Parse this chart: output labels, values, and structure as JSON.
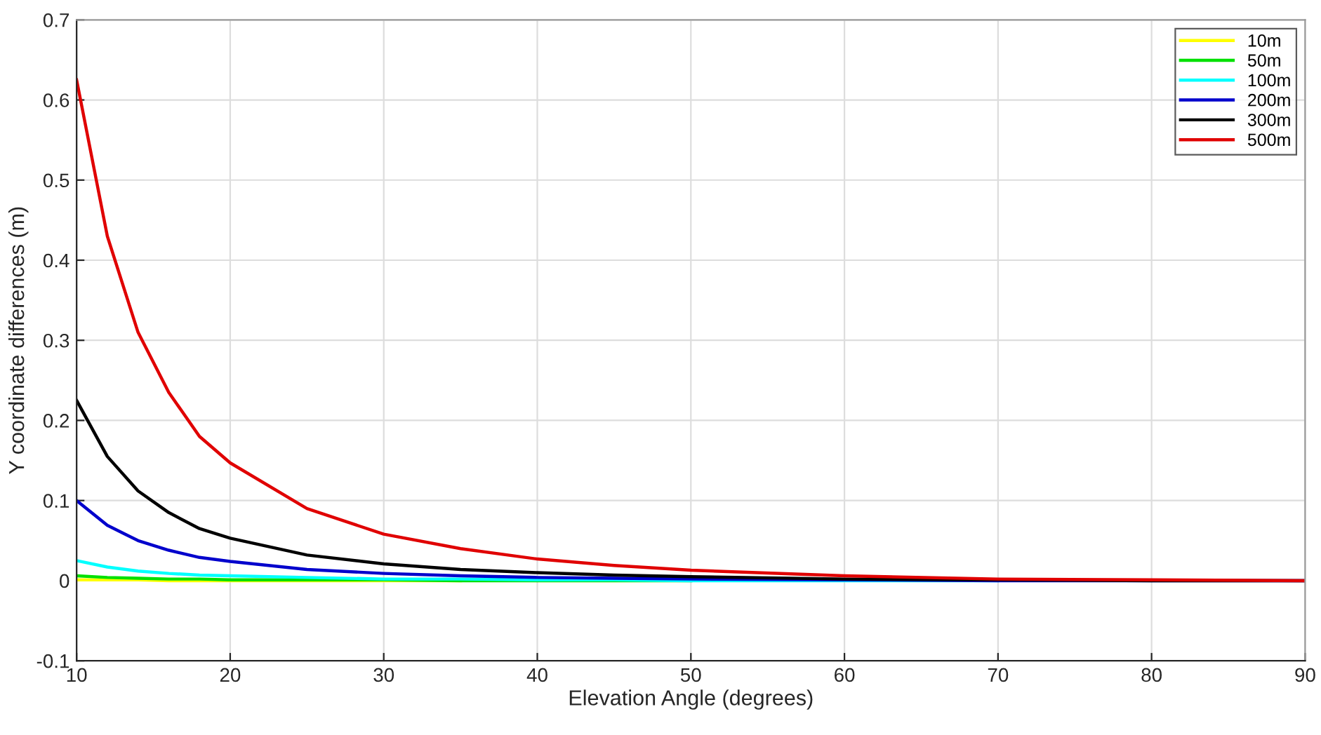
{
  "chart_data": {
    "type": "line",
    "xlabel": "Elevation Angle (degrees)",
    "ylabel": "Y coordinate differences (m)",
    "x": [
      10,
      12,
      14,
      16,
      18,
      20,
      25,
      30,
      35,
      40,
      45,
      50,
      60,
      70,
      80,
      90
    ],
    "series": [
      {
        "name": "10m",
        "color": "#ffff00",
        "values": [
          0.001,
          0.001,
          0.001,
          0,
          0,
          0,
          0,
          0,
          0,
          null,
          null,
          null,
          null,
          null,
          null,
          null
        ]
      },
      {
        "name": "50m",
        "color": "#00e000",
        "values": [
          0.006,
          0.004,
          0.003,
          0.002,
          0.002,
          0.001,
          0.001,
          0.001,
          0,
          0,
          0,
          0,
          null,
          null,
          null,
          null
        ]
      },
      {
        "name": "100m",
        "color": "#00ffff",
        "values": [
          0.025,
          0.017,
          0.012,
          0.009,
          0.007,
          0.006,
          0.004,
          0.002,
          0.002,
          0.001,
          0.001,
          0,
          0,
          0,
          null,
          null
        ]
      },
      {
        "name": "200m",
        "color": "#0000cc",
        "values": [
          0.1,
          0.069,
          0.05,
          0.038,
          0.029,
          0.024,
          0.014,
          0.009,
          0.006,
          0.004,
          0.003,
          0.002,
          0.001,
          0,
          0,
          0
        ]
      },
      {
        "name": "300m",
        "color": "#000000",
        "values": [
          0.225,
          0.155,
          0.112,
          0.085,
          0.065,
          0.053,
          0.032,
          0.021,
          0.014,
          0.01,
          0.007,
          0.005,
          0.002,
          0.001,
          0,
          0
        ]
      },
      {
        "name": "500m",
        "color": "#e00000",
        "values": [
          0.625,
          0.43,
          0.31,
          0.235,
          0.18,
          0.147,
          0.09,
          0.058,
          0.04,
          0.027,
          0.019,
          0.013,
          0.006,
          0.002,
          0.001,
          0
        ]
      }
    ],
    "xlim": [
      10,
      90
    ],
    "xticks": [
      10,
      20,
      30,
      40,
      50,
      60,
      70,
      80,
      90
    ],
    "ylim": [
      -0.1,
      0.7
    ],
    "yticks": [
      -0.1,
      0,
      0.1,
      0.2,
      0.3,
      0.4,
      0.5,
      0.6,
      0.7
    ],
    "grid": true,
    "legend": "top right",
    "line_style": "solid"
  }
}
